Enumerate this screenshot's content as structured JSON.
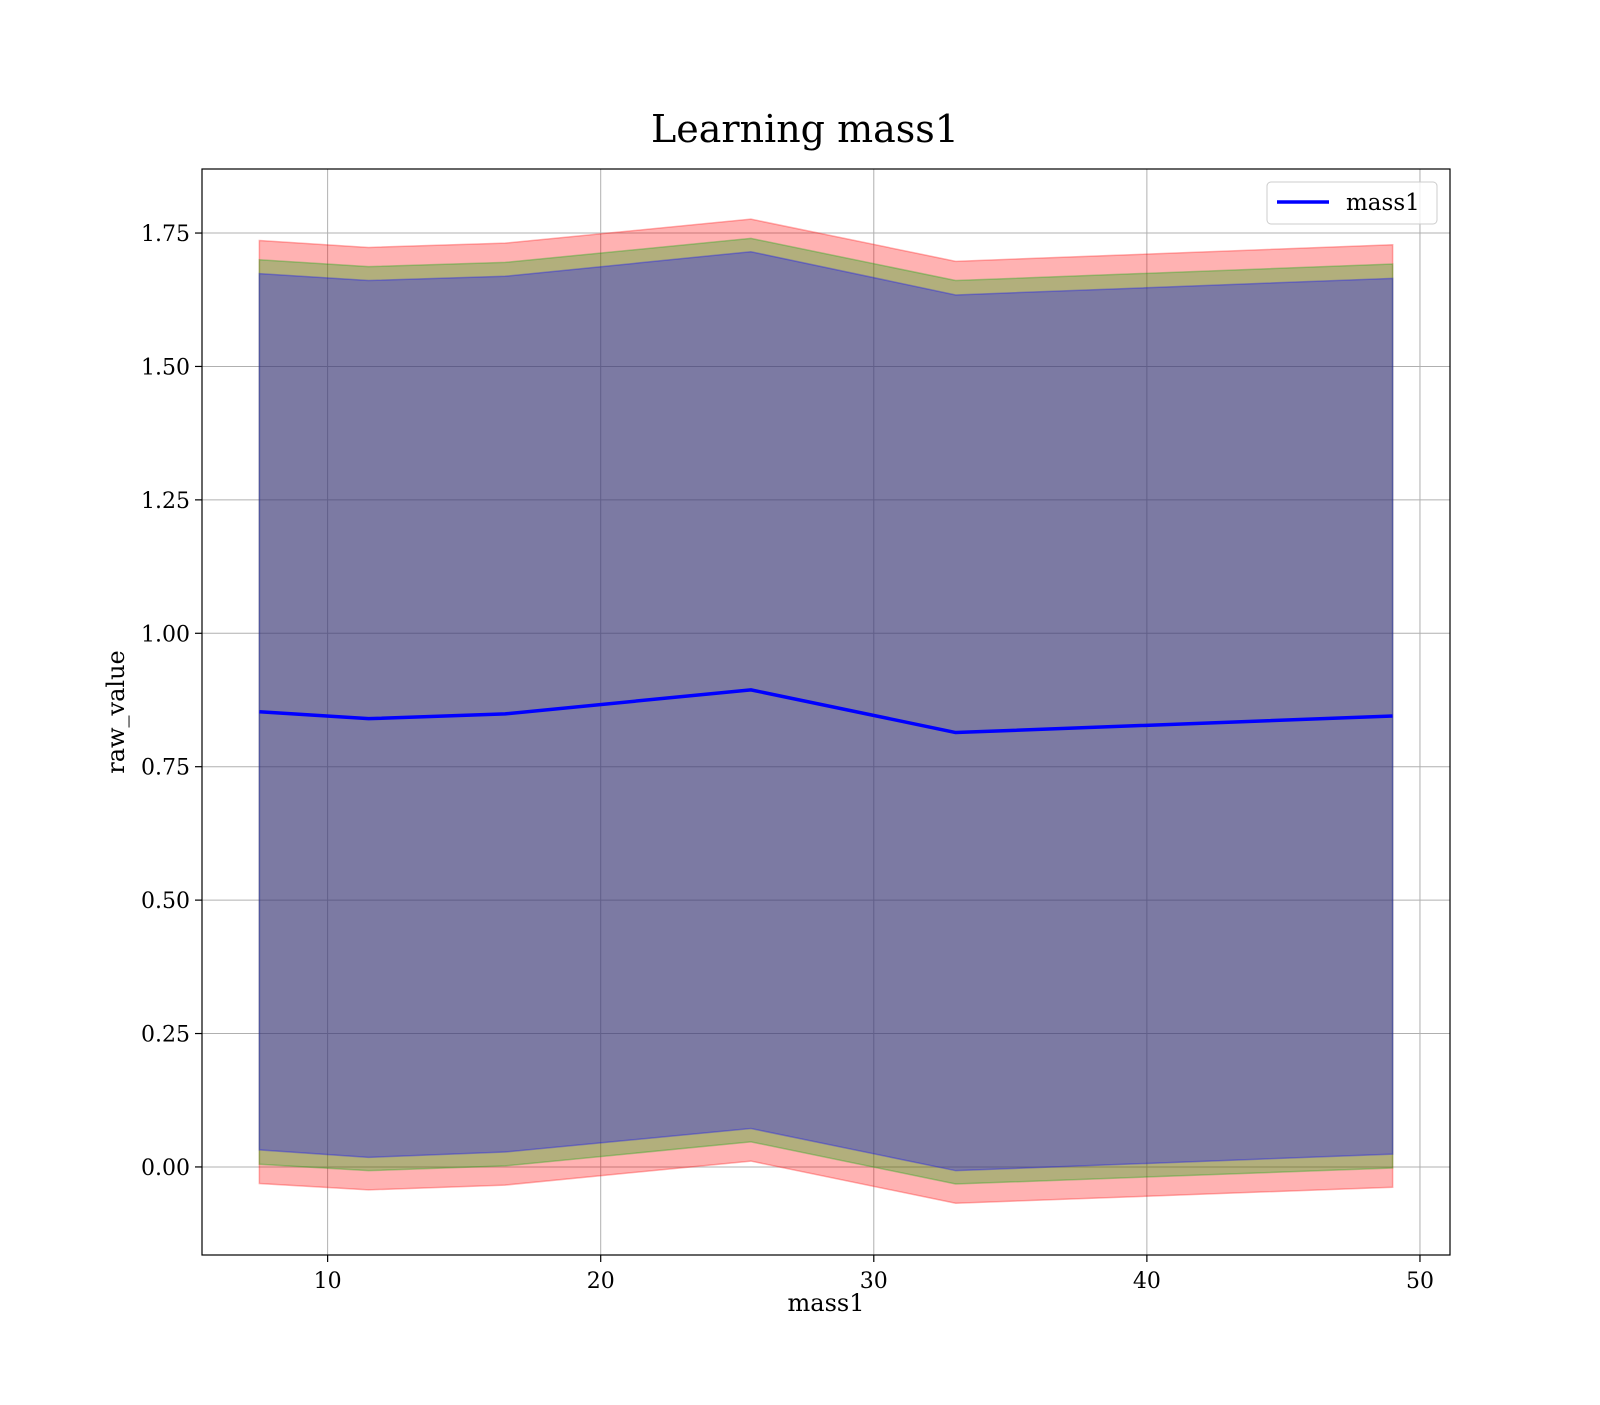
{
  "chart_data": {
    "type": "line",
    "title": "Learning mass1",
    "xlabel": "mass1",
    "ylabel": "raw_value",
    "xlim": [
      5.4,
      51.1
    ],
    "ylim": [
      -0.165,
      1.87
    ],
    "xticks": [
      10,
      20,
      30,
      40,
      50
    ],
    "yticks": [
      0.0,
      0.25,
      0.5,
      0.75,
      1.0,
      1.25,
      1.5,
      1.75
    ],
    "ytick_labels": [
      "0.00",
      "0.25",
      "0.50",
      "0.75",
      "1.00",
      "1.25",
      "1.50",
      "1.75"
    ],
    "grid": true,
    "legend": {
      "position": "top-right",
      "entries": [
        "mass1"
      ]
    },
    "x": [
      7.5,
      11.5,
      16.5,
      25.5,
      33.0,
      49.0
    ],
    "series": [
      {
        "name": "mass1",
        "color": "#0000ff",
        "values": [
          0.853,
          0.84,
          0.849,
          0.894,
          0.814,
          0.845
        ]
      }
    ],
    "bands": [
      {
        "color": "#ff0000",
        "opacity": 0.3,
        "lower": [
          -0.031,
          -0.043,
          -0.034,
          0.011,
          -0.068,
          -0.038
        ],
        "upper": [
          1.736,
          1.723,
          1.731,
          1.776,
          1.697,
          1.728
        ]
      },
      {
        "color": "#00aa00",
        "opacity": 0.3,
        "lower": [
          0.005,
          -0.007,
          0.002,
          0.047,
          -0.032,
          -0.002
        ],
        "upper": [
          1.7,
          1.687,
          1.695,
          1.74,
          1.661,
          1.692
        ]
      },
      {
        "color": "#0000ff",
        "opacity": 0.3,
        "lower": [
          0.032,
          0.018,
          0.028,
          0.072,
          -0.007,
          0.024
        ],
        "upper": [
          1.674,
          1.661,
          1.669,
          1.715,
          1.634,
          1.665
        ]
      }
    ]
  }
}
